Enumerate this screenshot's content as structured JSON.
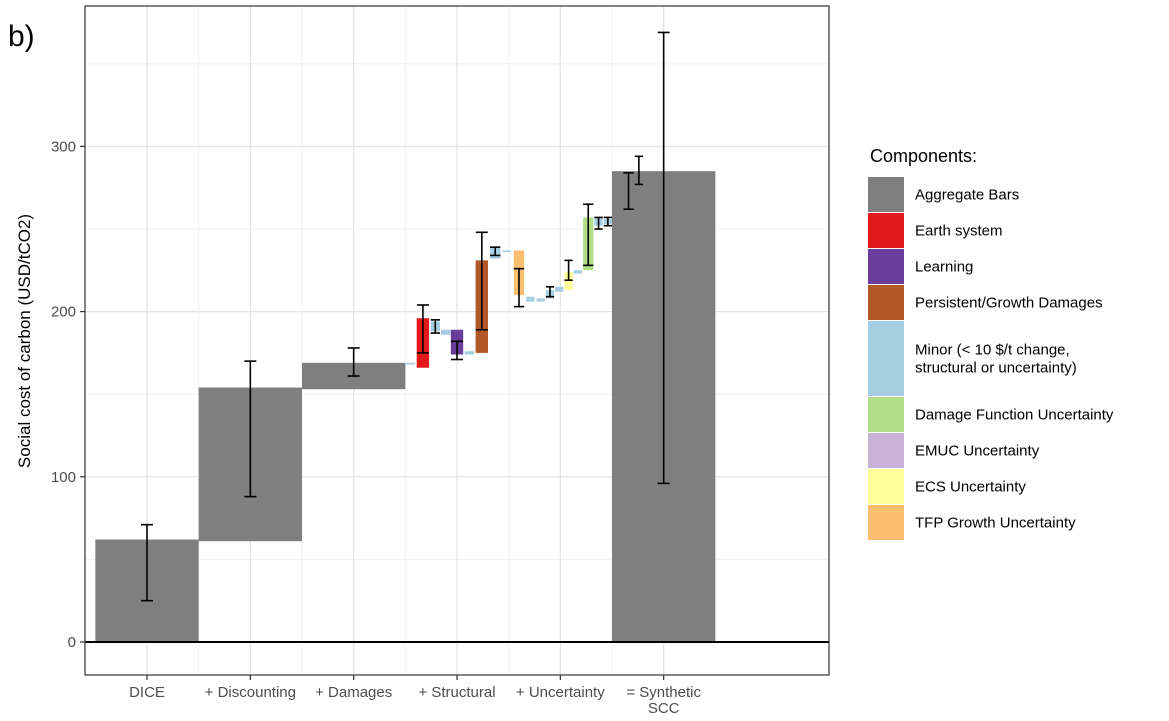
{
  "panel_label": "b)",
  "legend": {
    "title": "Components:",
    "items": [
      {
        "key": "aggregate",
        "lines": [
          "Aggregate Bars"
        ],
        "color": "#7f7f7f"
      },
      {
        "key": "earth",
        "lines": [
          "Earth system"
        ],
        "color": "#e31a1c"
      },
      {
        "key": "learning",
        "lines": [
          "Learning"
        ],
        "color": "#6a3d9a"
      },
      {
        "key": "persistent",
        "lines": [
          "Persistent/Growth Damages"
        ],
        "color": "#b15928"
      },
      {
        "key": "minor",
        "lines": [
          "Minor (< 10 $/t change,",
          "structural or uncertainty)"
        ],
        "color": "#a6cee3"
      },
      {
        "key": "damage_unc",
        "lines": [
          "Damage Function Uncertainty"
        ],
        "color": "#b2df8a"
      },
      {
        "key": "emuc",
        "lines": [
          "EMUC Uncertainty"
        ],
        "color": "#cab2d6"
      },
      {
        "key": "ecs",
        "lines": [
          "ECS Uncertainty"
        ],
        "color": "#ffff99"
      },
      {
        "key": "tfp",
        "lines": [
          "TFP Growth Uncertainty"
        ],
        "color": "#fdbf6f"
      }
    ]
  },
  "chart_data": {
    "type": "bar",
    "subtype": "waterfall",
    "ylabel": "Social cost of carbon (USD/tCO2)",
    "xlabel": "",
    "ylim": [
      -20,
      385
    ],
    "xlim": [
      0.4,
      7.6
    ],
    "yticks": [
      0,
      100,
      200,
      300
    ],
    "categories": [
      {
        "label": [
          "DICE"
        ],
        "x": 1
      },
      {
        "label": [
          "+ Discounting"
        ],
        "x": 2
      },
      {
        "label": [
          "+ Damages"
        ],
        "x": 3
      },
      {
        "label": [
          "+ Structural"
        ],
        "x": 4
      },
      {
        "label": [
          "+ Uncertainty"
        ],
        "x": 5
      },
      {
        "label": [
          "= Synthetic",
          "SCC"
        ],
        "x": 6
      }
    ],
    "grid": true,
    "legend_position": "right",
    "bars": [
      {
        "x": 1.0,
        "width": 1.0,
        "bottom": 0,
        "top": 62,
        "component": "aggregate",
        "err_low": 25,
        "err_high": 71
      },
      {
        "x": 2.0,
        "width": 1.0,
        "bottom": 61,
        "top": 154,
        "component": "aggregate",
        "err_low": 88,
        "err_high": 170
      },
      {
        "x": 3.0,
        "width": 1.0,
        "bottom": 153,
        "top": 169,
        "component": "aggregate",
        "err_low": 161,
        "err_high": 178
      },
      {
        "x": 3.55,
        "width": 0.09,
        "bottom": 168,
        "top": 169,
        "component": "minor"
      },
      {
        "x": 3.67,
        "width": 0.12,
        "bottom": 166,
        "top": 196,
        "component": "earth",
        "err_low": 175,
        "err_high": 204
      },
      {
        "x": 3.79,
        "width": 0.09,
        "bottom": 188,
        "top": 194,
        "component": "minor",
        "err_low": 187,
        "err_high": 195
      },
      {
        "x": 3.89,
        "width": 0.09,
        "bottom": 186,
        "top": 189,
        "component": "minor"
      },
      {
        "x": 4.0,
        "width": 0.12,
        "bottom": 174,
        "top": 189,
        "component": "learning",
        "err_low": 171,
        "err_high": 182
      },
      {
        "x": 4.12,
        "width": 0.09,
        "bottom": 174,
        "top": 176,
        "component": "minor"
      },
      {
        "x": 4.24,
        "width": 0.12,
        "bottom": 175,
        "top": 231,
        "component": "persistent",
        "err_low": 189,
        "err_high": 248
      },
      {
        "x": 4.37,
        "width": 0.1,
        "bottom": 232,
        "top": 239,
        "component": "minor",
        "err_low": 234,
        "err_high": 239
      },
      {
        "x": 4.48,
        "width": 0.08,
        "bottom": 236,
        "top": 237,
        "component": "minor"
      },
      {
        "x": 4.6,
        "width": 0.1,
        "bottom": 210,
        "top": 237,
        "component": "tfp",
        "err_low": 203,
        "err_high": 226
      },
      {
        "x": 4.71,
        "width": 0.08,
        "bottom": 206,
        "top": 209,
        "component": "minor"
      },
      {
        "x": 4.81,
        "width": 0.08,
        "bottom": 206,
        "top": 208,
        "component": "minor"
      },
      {
        "x": 4.9,
        "width": 0.08,
        "bottom": 208,
        "top": 213,
        "component": "minor",
        "err_low": 209,
        "err_high": 215
      },
      {
        "x": 4.99,
        "width": 0.08,
        "bottom": 212,
        "top": 215,
        "component": "minor"
      },
      {
        "x": 5.08,
        "width": 0.08,
        "bottom": 213,
        "top": 224,
        "component": "ecs",
        "err_low": 219,
        "err_high": 231
      },
      {
        "x": 5.17,
        "width": 0.08,
        "bottom": 223,
        "top": 225,
        "component": "minor"
      },
      {
        "x": 5.27,
        "width": 0.1,
        "bottom": 225,
        "top": 257,
        "component": "damage_unc",
        "err_low": 228,
        "err_high": 265
      },
      {
        "x": 5.37,
        "width": 0.08,
        "bottom": 252,
        "top": 257,
        "component": "minor",
        "err_low": 250,
        "err_high": 257
      },
      {
        "x": 5.46,
        "width": 0.08,
        "bottom": 253,
        "top": 256,
        "component": "minor",
        "err_low": 252,
        "err_high": 257
      },
      {
        "x": 5.55,
        "width": 0.08,
        "bottom": 255,
        "top": 257,
        "component": "minor"
      },
      {
        "x": 5.66,
        "width": 0.1,
        "bottom": 256,
        "top": 280,
        "component": "emuc",
        "err_low": 262,
        "err_high": 284
      },
      {
        "x": 5.76,
        "width": 0.08,
        "bottom": 278,
        "top": 285,
        "component": "minor",
        "err_low": 277,
        "err_high": 294
      },
      {
        "x": 5.86,
        "width": 0.08,
        "bottom": 283,
        "top": 285,
        "component": "minor"
      },
      {
        "x": 6.0,
        "width": 1.0,
        "bottom": 0,
        "top": 285,
        "component": "aggregate",
        "err_low": 96,
        "err_high": 369
      }
    ]
  }
}
